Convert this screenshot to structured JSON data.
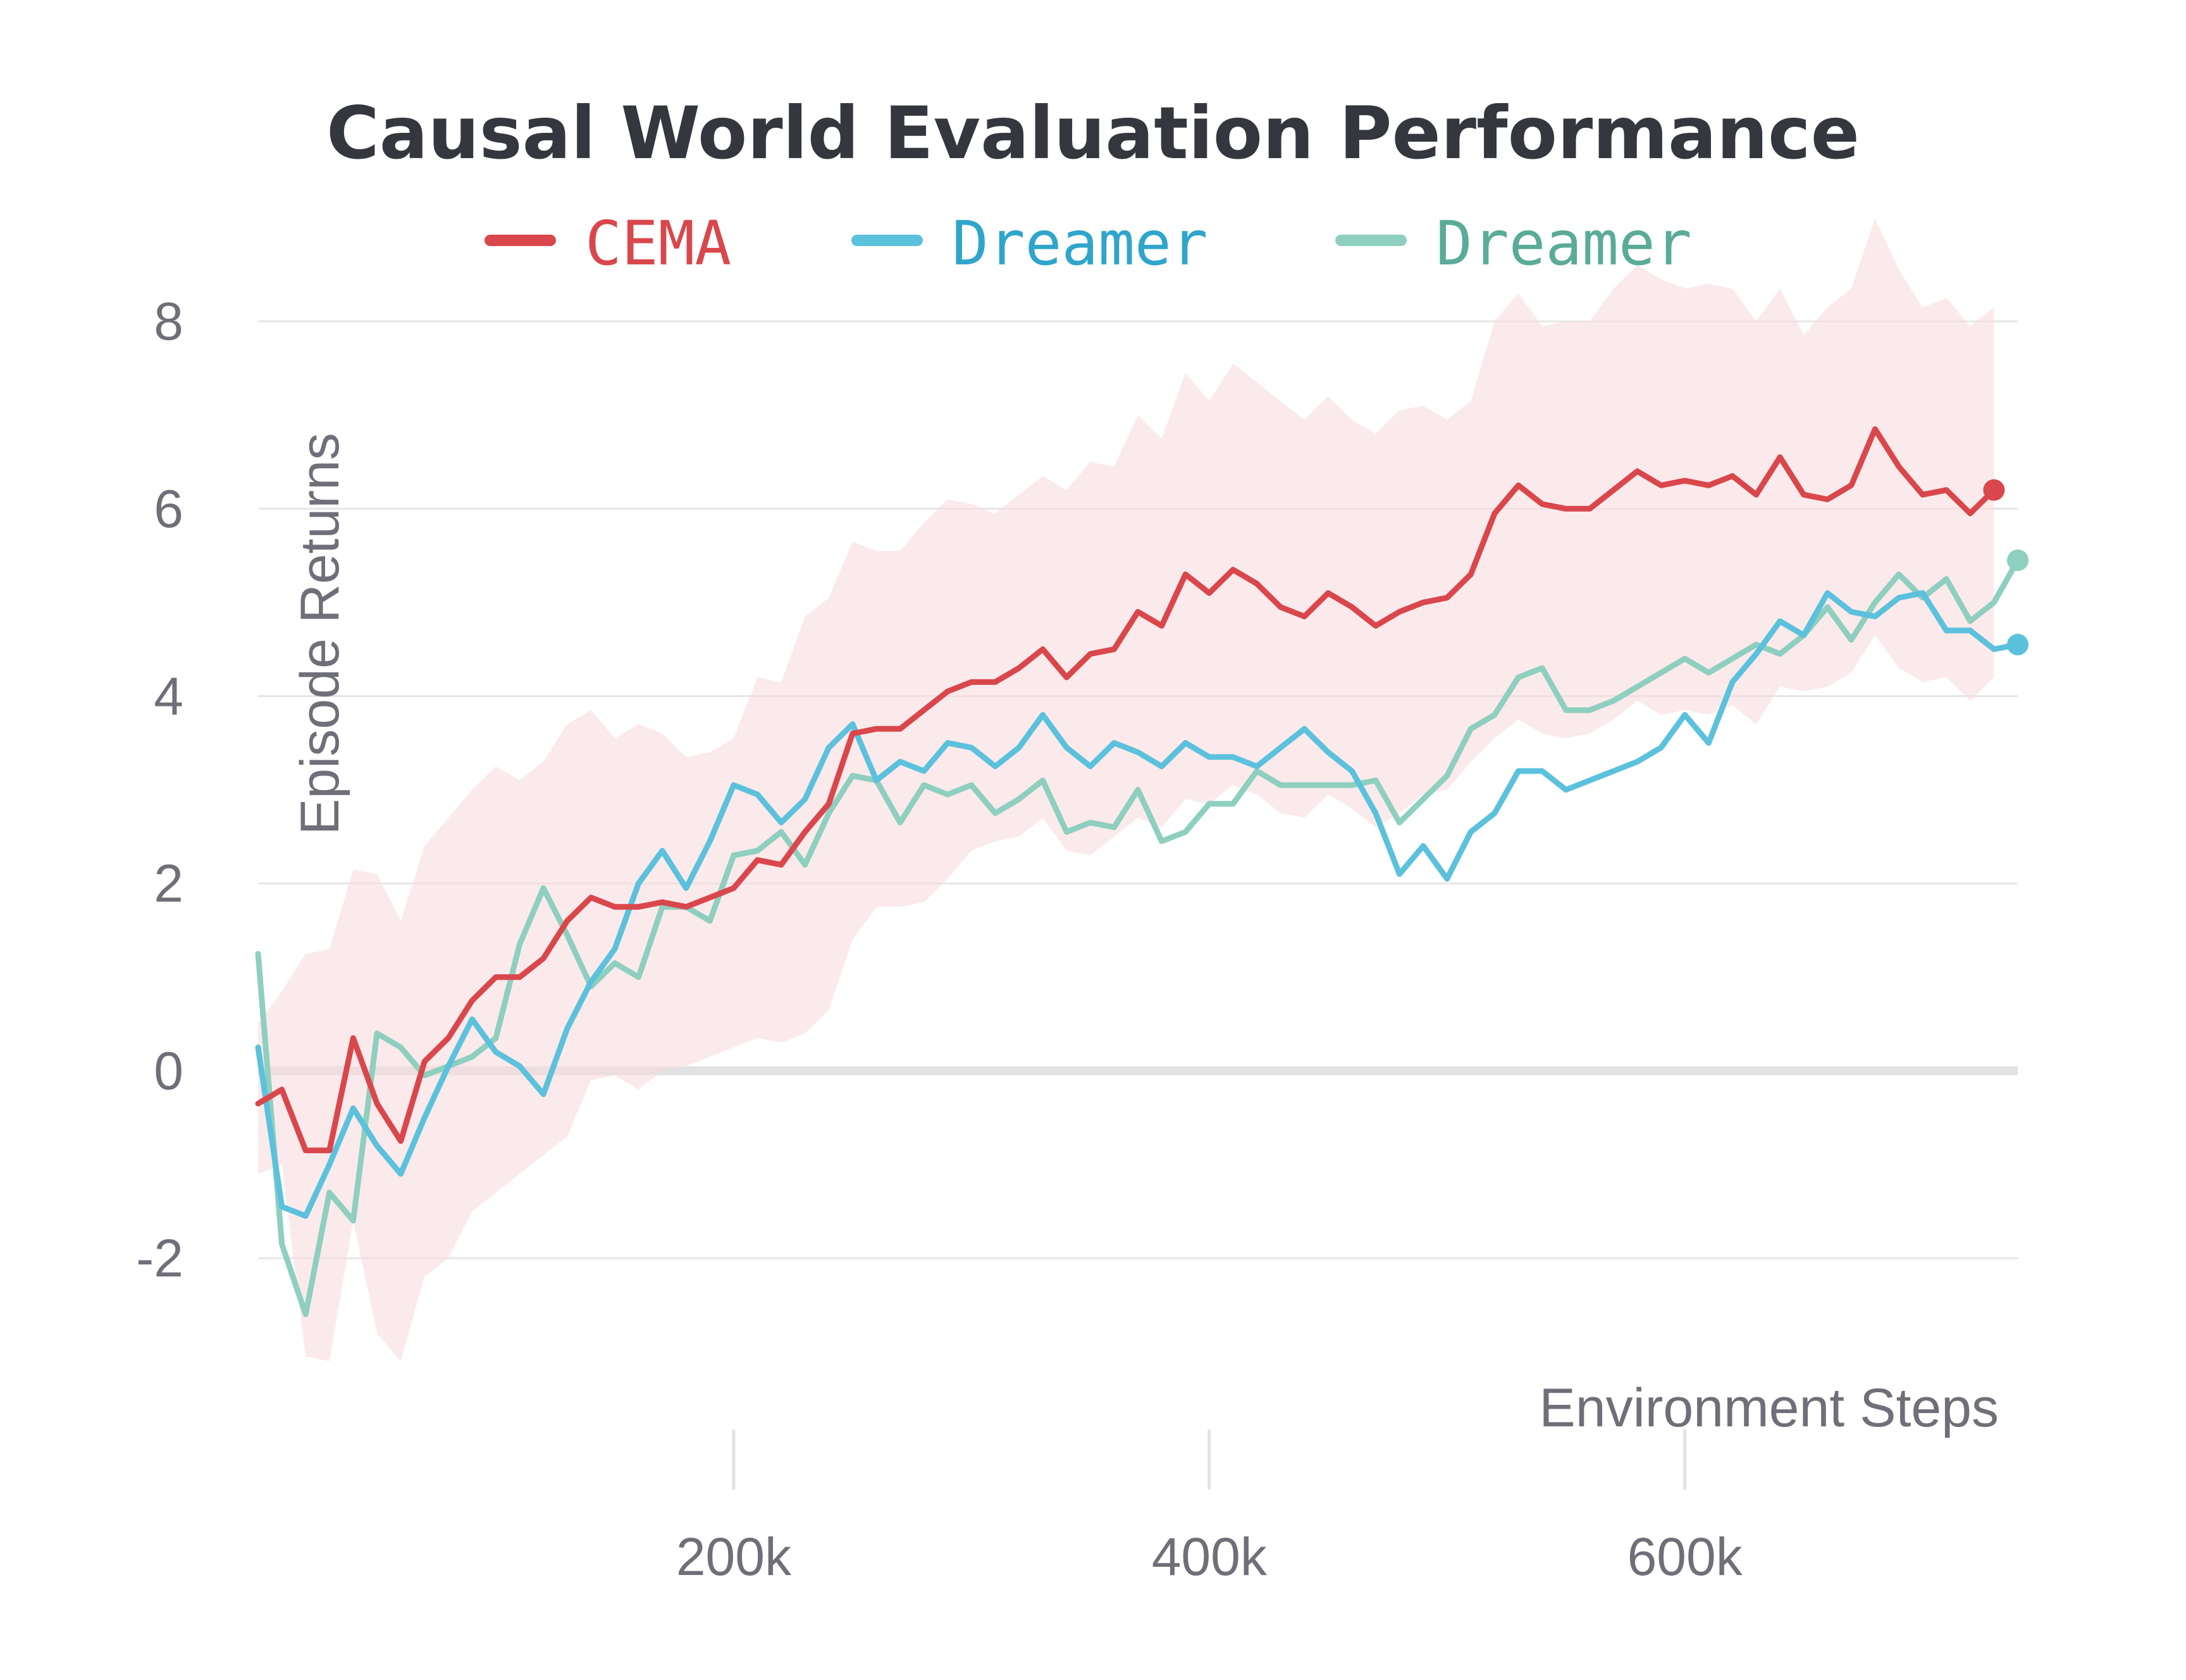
{
  "chart_data": {
    "type": "line",
    "title": "Causal World Evaluation Performance",
    "xlabel": "Environment Steps",
    "ylabel": "Episode Returns",
    "xlim": [
      0,
      740000
    ],
    "ylim": [
      -3.1,
      9.2
    ],
    "x_ticks": [
      {
        "value": 200000,
        "label": "200k"
      },
      {
        "value": 400000,
        "label": "400k"
      },
      {
        "value": 600000,
        "label": "600k"
      }
    ],
    "y_ticks": [
      {
        "value": -2,
        "label": "-2"
      },
      {
        "value": 0,
        "label": "0"
      },
      {
        "value": 2,
        "label": "2"
      },
      {
        "value": 4,
        "label": "4"
      },
      {
        "value": 6,
        "label": "6"
      },
      {
        "value": 8,
        "label": "8"
      }
    ],
    "grid": true,
    "legend_position": "top-center",
    "series": [
      {
        "name": "CEMA",
        "color": "#d9474c",
        "x": [
          0,
          10000,
          20000,
          30000,
          40000,
          50000,
          60000,
          70000,
          80000,
          90000,
          100000,
          110000,
          120000,
          130000,
          140000,
          150000,
          160000,
          170000,
          180000,
          190000,
          200000,
          210000,
          220000,
          230000,
          240000,
          250000,
          260000,
          270000,
          280000,
          290000,
          300000,
          310000,
          320000,
          330000,
          340000,
          350000,
          360000,
          370000,
          380000,
          390000,
          400000,
          410000,
          420000,
          430000,
          440000,
          450000,
          460000,
          470000,
          480000,
          490000,
          500000,
          510000,
          520000,
          530000,
          540000,
          550000,
          560000,
          570000,
          580000,
          590000,
          600000,
          610000,
          620000,
          630000,
          640000,
          650000,
          660000,
          670000,
          680000,
          690000,
          700000,
          710000,
          720000,
          730000
        ],
        "y": [
          -0.35,
          -0.2,
          -0.85,
          -0.85,
          0.35,
          -0.35,
          -0.75,
          0.1,
          0.35,
          0.75,
          1.0,
          1.0,
          1.2,
          1.6,
          1.85,
          1.75,
          1.75,
          1.8,
          1.75,
          1.85,
          1.95,
          2.25,
          2.2,
          2.55,
          2.85,
          3.6,
          3.65,
          3.65,
          3.85,
          4.05,
          4.15,
          4.15,
          4.3,
          4.5,
          4.2,
          4.45,
          4.5,
          4.9,
          4.75,
          5.3,
          5.1,
          5.35,
          5.2,
          4.95,
          4.85,
          5.1,
          4.95,
          4.75,
          4.9,
          5.0,
          5.05,
          5.3,
          5.95,
          6.25,
          6.05,
          6.0,
          6.0,
          6.2,
          6.4,
          6.25,
          6.3,
          6.25,
          6.35,
          6.15,
          6.55,
          6.15,
          6.1,
          6.25,
          6.85,
          6.45,
          6.15,
          6.2,
          5.95,
          6.2
        ],
        "lower": [
          -1.1,
          -1.0,
          -3.05,
          -3.1,
          -1.6,
          -2.8,
          -3.1,
          -2.2,
          -2.0,
          -1.5,
          -1.3,
          -1.1,
          -0.9,
          -0.7,
          -0.1,
          -0.05,
          -0.2,
          0.0,
          0.05,
          0.15,
          0.25,
          0.35,
          0.3,
          0.4,
          0.65,
          1.4,
          1.75,
          1.75,
          1.8,
          2.05,
          2.35,
          2.45,
          2.5,
          2.7,
          2.35,
          2.3,
          2.5,
          2.7,
          2.6,
          2.9,
          2.85,
          3.05,
          2.95,
          2.75,
          2.7,
          2.95,
          2.8,
          2.6,
          2.75,
          2.95,
          3.0,
          3.3,
          3.55,
          3.75,
          3.6,
          3.55,
          3.6,
          3.75,
          3.95,
          3.8,
          3.85,
          3.8,
          3.9,
          3.7,
          4.1,
          4.05,
          4.1,
          4.25,
          4.65,
          4.3,
          4.15,
          4.2,
          3.95,
          4.2
        ],
        "upper": [
          0.5,
          0.85,
          1.25,
          1.3,
          2.15,
          2.1,
          1.6,
          2.4,
          2.7,
          3.0,
          3.25,
          3.1,
          3.3,
          3.7,
          3.85,
          3.55,
          3.7,
          3.6,
          3.35,
          3.4,
          3.55,
          4.2,
          4.15,
          4.85,
          5.05,
          5.65,
          5.55,
          5.55,
          5.85,
          6.1,
          6.05,
          5.95,
          6.15,
          6.35,
          6.2,
          6.5,
          6.45,
          7.0,
          6.75,
          7.45,
          7.15,
          7.55,
          7.35,
          7.15,
          6.95,
          7.2,
          6.95,
          6.8,
          7.05,
          7.1,
          6.95,
          7.15,
          8.0,
          8.3,
          7.95,
          8.0,
          8.0,
          8.35,
          8.6,
          8.45,
          8.35,
          8.4,
          8.35,
          8.0,
          8.35,
          7.85,
          8.15,
          8.35,
          9.1,
          8.55,
          8.15,
          8.25,
          7.95,
          8.15
        ]
      },
      {
        "name": "Dreamer",
        "color": "#5bc1dc",
        "x": [
          0,
          10000,
          20000,
          30000,
          40000,
          50000,
          60000,
          70000,
          80000,
          90000,
          100000,
          110000,
          120000,
          130000,
          140000,
          150000,
          160000,
          170000,
          180000,
          190000,
          200000,
          210000,
          220000,
          230000,
          240000,
          250000,
          260000,
          270000,
          280000,
          290000,
          300000,
          310000,
          320000,
          330000,
          340000,
          350000,
          360000,
          370000,
          380000,
          390000,
          400000,
          410000,
          420000,
          430000,
          440000,
          450000,
          460000,
          470000,
          480000,
          490000,
          500000,
          510000,
          520000,
          530000,
          540000,
          550000,
          560000,
          570000,
          580000,
          590000,
          600000,
          610000,
          620000,
          630000,
          640000,
          650000,
          660000,
          670000,
          680000,
          690000,
          700000,
          710000,
          720000,
          730000,
          740000
        ],
        "y": [
          0.25,
          -1.45,
          -1.55,
          -1.0,
          -0.4,
          -0.8,
          -1.1,
          -0.5,
          0.05,
          0.55,
          0.2,
          0.05,
          -0.25,
          0.45,
          0.95,
          1.3,
          2.0,
          2.35,
          1.95,
          2.45,
          3.05,
          2.95,
          2.65,
          2.9,
          3.45,
          3.7,
          3.1,
          3.3,
          3.2,
          3.5,
          3.45,
          3.25,
          3.45,
          3.8,
          3.45,
          3.25,
          3.5,
          3.4,
          3.25,
          3.5,
          3.35,
          3.35,
          3.25,
          3.45,
          3.65,
          3.4,
          3.2,
          2.75,
          2.1,
          2.4,
          2.05,
          2.55,
          2.75,
          3.2,
          3.2,
          3.0,
          3.1,
          3.2,
          3.3,
          3.45,
          3.8,
          3.5,
          4.15,
          4.45,
          4.8,
          4.65,
          5.1,
          4.9,
          4.85,
          5.05,
          5.1,
          4.7,
          4.7,
          4.5,
          4.55
        ]
      },
      {
        "name": "Dreamer",
        "color": "#8ecfbf",
        "x": [
          0,
          10000,
          20000,
          30000,
          40000,
          50000,
          60000,
          70000,
          80000,
          90000,
          100000,
          110000,
          120000,
          130000,
          140000,
          150000,
          160000,
          170000,
          180000,
          190000,
          200000,
          210000,
          220000,
          230000,
          240000,
          250000,
          260000,
          270000,
          280000,
          290000,
          300000,
          310000,
          320000,
          330000,
          340000,
          350000,
          360000,
          370000,
          380000,
          390000,
          400000,
          410000,
          420000,
          430000,
          440000,
          450000,
          460000,
          470000,
          480000,
          490000,
          500000,
          510000,
          520000,
          530000,
          540000,
          550000,
          560000,
          570000,
          580000,
          590000,
          600000,
          610000,
          620000,
          630000,
          640000,
          650000,
          660000,
          670000,
          680000,
          690000,
          700000,
          710000,
          720000,
          730000,
          740000
        ],
        "y": [
          1.25,
          -1.85,
          -2.6,
          -1.3,
          -1.6,
          0.4,
          0.25,
          -0.05,
          0.05,
          0.15,
          0.35,
          1.35,
          1.95,
          1.45,
          0.9,
          1.15,
          1.0,
          1.75,
          1.75,
          1.6,
          2.3,
          2.35,
          2.55,
          2.2,
          2.75,
          3.15,
          3.1,
          2.65,
          3.05,
          2.95,
          3.05,
          2.75,
          2.9,
          3.1,
          2.55,
          2.65,
          2.6,
          3.0,
          2.45,
          2.55,
          2.85,
          2.85,
          3.2,
          3.05,
          3.05,
          3.05,
          3.05,
          3.1,
          2.65,
          2.9,
          3.15,
          3.65,
          3.8,
          4.2,
          4.3,
          3.85,
          3.85,
          3.95,
          4.1,
          4.25,
          4.4,
          4.25,
          4.4,
          4.55,
          4.45,
          4.65,
          4.95,
          4.6,
          5.0,
          5.3,
          5.05,
          5.25,
          4.8,
          5.0,
          5.45
        ]
      }
    ]
  }
}
